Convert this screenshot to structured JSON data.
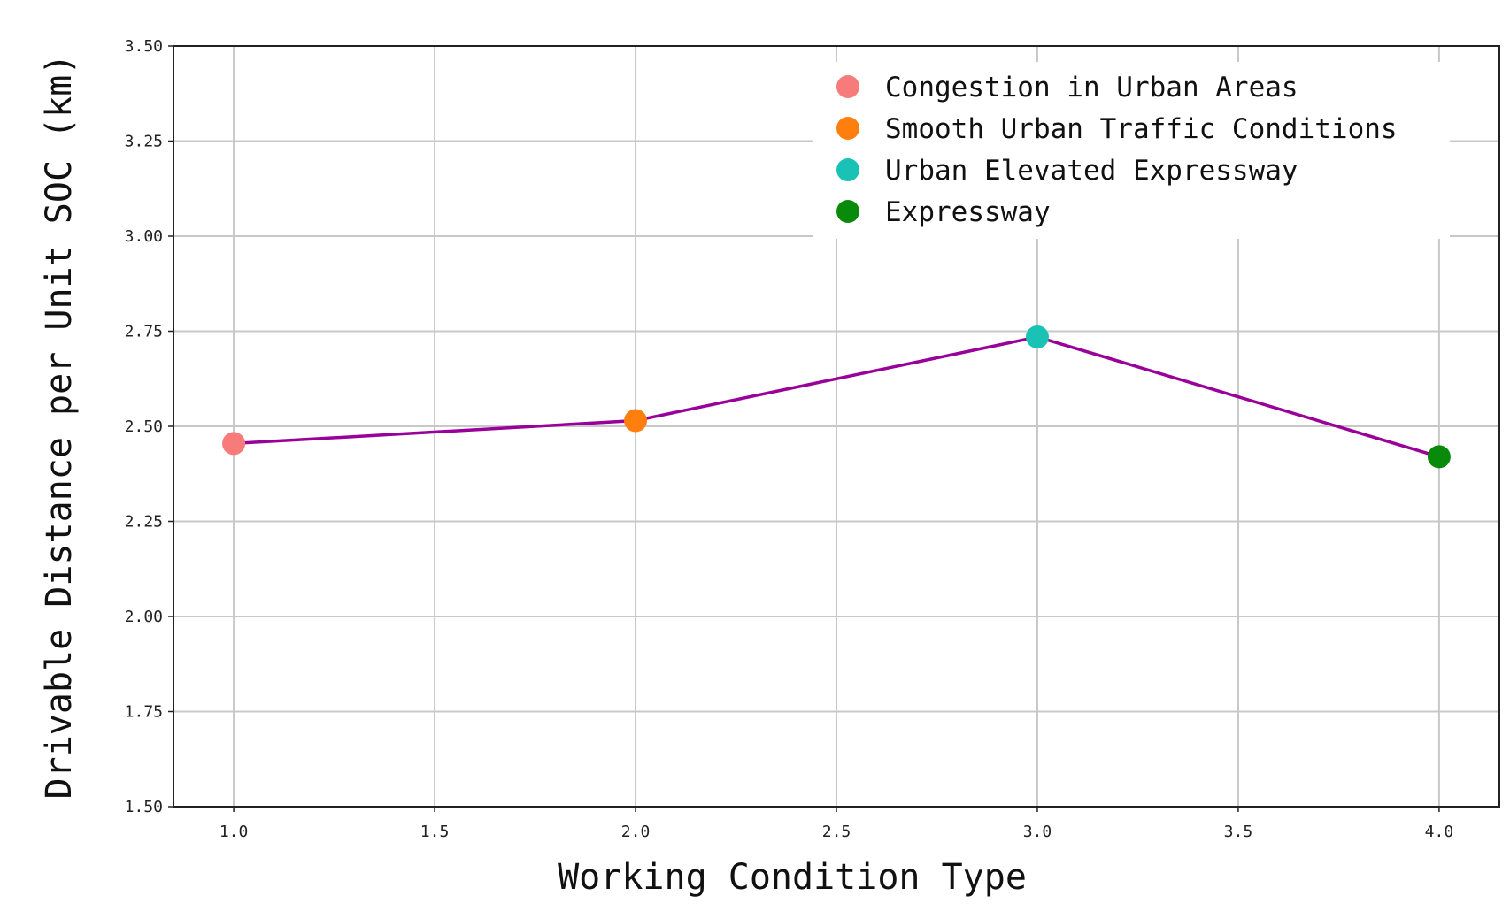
{
  "chart_data": {
    "type": "line",
    "xlabel": "Working Condition Type",
    "ylabel": "Drivable Distance per Unit SOC (km)",
    "xlim": [
      0.85,
      4.15
    ],
    "ylim": [
      1.5,
      3.5
    ],
    "x_ticks": [
      1.0,
      1.5,
      2.0,
      2.5,
      3.0,
      3.5,
      4.0
    ],
    "x_tick_labels": [
      "1.0",
      "1.5",
      "2.0",
      "2.5",
      "3.0",
      "3.5",
      "4.0"
    ],
    "y_ticks": [
      1.5,
      1.75,
      2.0,
      2.25,
      2.5,
      2.75,
      3.0,
      3.25,
      3.5
    ],
    "y_tick_labels": [
      "1.50",
      "1.75",
      "2.00",
      "2.25",
      "2.50",
      "2.75",
      "3.00",
      "3.25",
      "3.50"
    ],
    "grid": true,
    "legend_position": "top-right",
    "line_color": "#990099",
    "points": [
      {
        "x": 1.0,
        "y": 2.455,
        "name": "Congestion in Urban Areas",
        "color": "#f87b7b"
      },
      {
        "x": 2.0,
        "y": 2.515,
        "name": "Smooth Urban Traffic Conditions",
        "color": "#ff7f0e"
      },
      {
        "x": 3.0,
        "y": 2.735,
        "name": "Urban Elevated Expressway",
        "color": "#19c2b4"
      },
      {
        "x": 4.0,
        "y": 2.42,
        "name": "Expressway",
        "color": "#0a8a0a"
      }
    ]
  }
}
